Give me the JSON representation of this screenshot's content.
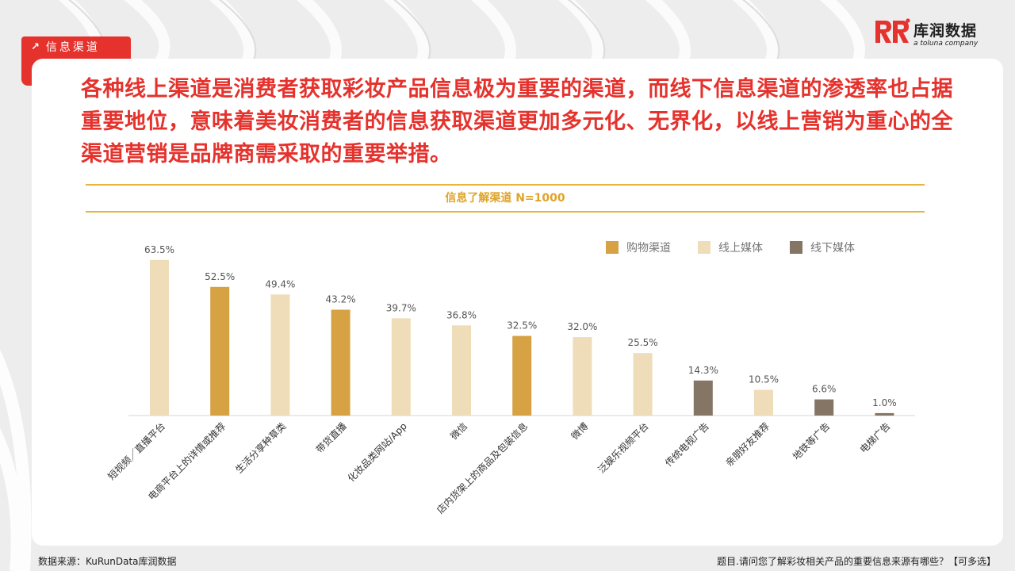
{
  "section_tag": {
    "label": "信息渠道",
    "icon": "arrow-up-right-icon"
  },
  "brand": {
    "name": "库润数据",
    "tagline": "a toluna company",
    "accent": "#e5322d"
  },
  "headline": "各种线上渠道是消费者获取彩妆产品信息极为重要的渠道，而线下信息渠道的渗透率也占据重要地位，意味着美妆消费者的信息获取渠道更加多元化、无界化，以线上营销为重心的全渠道营销是品牌商需采取的重要举措。",
  "footer": {
    "source": "数据来源：KuRunData库润数据",
    "question": "题目.请问您了解彩妆相关产品的重要信息来源有哪些？【可多选】"
  },
  "chart_data": {
    "type": "bar",
    "title": "信息了解渠道 N=1000",
    "categories": [
      "短视频／直播平台",
      "电商平台上的详情或推荐",
      "生活分享种草类",
      "带货直播",
      "化妆品类网站/App",
      "微信",
      "店内货架上的商品及包装信息",
      "微博",
      "泛娱乐视频平台",
      "传统电视广告",
      "亲朋好友推荐",
      "地铁等广告",
      "电梯广告"
    ],
    "values": [
      63.5,
      52.5,
      49.4,
      43.2,
      39.7,
      36.8,
      32.5,
      32.0,
      25.5,
      14.3,
      10.5,
      6.6,
      1.0
    ],
    "value_labels": [
      "63.5%",
      "52.5%",
      "49.4%",
      "43.2%",
      "39.7%",
      "36.8%",
      "32.5%",
      "32.0%",
      "25.5%",
      "14.3%",
      "10.5%",
      "6.6%",
      "1.0%"
    ],
    "groups": [
      "线上媒体",
      "购物渠道",
      "线上媒体",
      "购物渠道",
      "线上媒体",
      "线上媒体",
      "购物渠道",
      "线上媒体",
      "线上媒体",
      "线下媒体",
      "线上媒体",
      "线下媒体",
      "线下媒体"
    ],
    "legend": [
      {
        "name": "购物渠道",
        "color": "#d7a244"
      },
      {
        "name": "线上媒体",
        "color": "#efdcb9"
      },
      {
        "name": "线下媒体",
        "color": "#847564"
      }
    ],
    "legend_position": "top-right",
    "ylim": [
      0,
      70
    ],
    "grid": false,
    "unit": "%"
  }
}
